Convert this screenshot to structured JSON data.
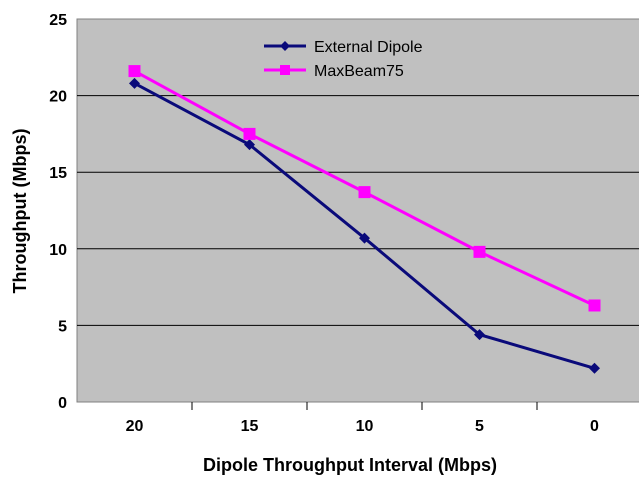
{
  "chart_data": {
    "type": "line",
    "categories": [
      "20",
      "15",
      "10",
      "5",
      "0"
    ],
    "series": [
      {
        "name": "External Dipole",
        "values": [
          20.8,
          16.8,
          10.7,
          4.4,
          2.2
        ],
        "color": "#0a0a7a",
        "marker": "diamond"
      },
      {
        "name": "MaxBeam75",
        "values": [
          21.6,
          17.5,
          13.7,
          9.8,
          6.3
        ],
        "color": "#ff00ff",
        "marker": "square"
      }
    ],
    "yticks": [
      0,
      5,
      10,
      15,
      20,
      25
    ],
    "ylim": [
      0,
      25
    ],
    "xlabel": "Dipole Throughput Interval (Mbps)",
    "ylabel": "Throughput (Mbps)",
    "grid": true,
    "plot_background": "#c0c0c0",
    "legend_position": "top-center"
  }
}
